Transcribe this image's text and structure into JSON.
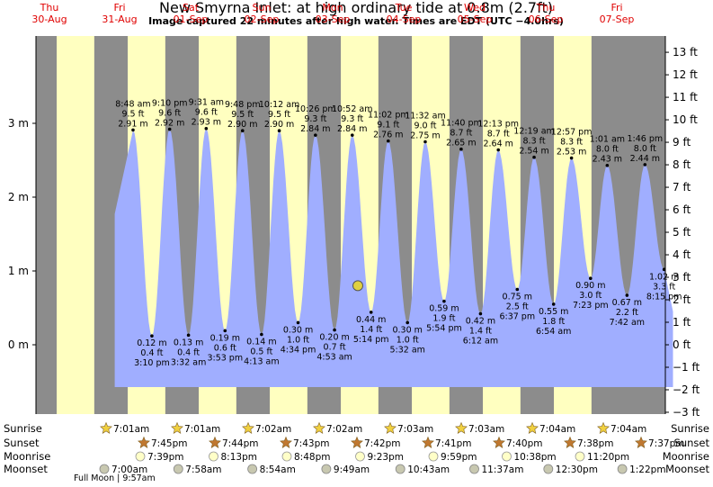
{
  "title": "New Smyrna Inlet: at high  ordinary tide at 0.8m (2.7ft)",
  "subtitle": "Image captured 22 minutes after high water. Times are EDT (UTC −4.0hrs)",
  "colors": {
    "night": "#8c8c8c",
    "day": "#ffffc0",
    "tide": "#a0aeff",
    "day_text": "#e00000",
    "marker": "#e0d040"
  },
  "chart_data": {
    "type": "area",
    "title": "New Smyrna Inlet: at high  ordinary tide at 0.8m (2.7ft)",
    "y_left_unit": "m",
    "y_right_unit": "ft",
    "ylim_m": [
      -0.9144,
      3.9624
    ],
    "yticks_m": [
      "0 m",
      "1 m",
      "2 m",
      "3 m"
    ],
    "yticks_ft": [
      "13 ft",
      "12 ft",
      "11 ft",
      "10 ft",
      "9 ft",
      "8 ft",
      "7 ft",
      "6 ft",
      "5 ft",
      "4 ft",
      "3 ft",
      "2 ft",
      "1 ft",
      "0 ft",
      "−1 ft",
      "−2 ft",
      "−3 ft"
    ],
    "days": [
      {
        "dow": "Thu",
        "date": "30-Aug"
      },
      {
        "dow": "Fri",
        "date": "31-Aug"
      },
      {
        "dow": "Sat",
        "date": "01-Sep"
      },
      {
        "dow": "Sun",
        "date": "02-Sep"
      },
      {
        "dow": "Mon",
        "date": "03-Sep"
      },
      {
        "dow": "Tue",
        "date": "04-Sep"
      },
      {
        "dow": "Wed",
        "date": "05-Sep"
      },
      {
        "dow": "Thu",
        "date": "06-Sep"
      },
      {
        "dow": "Fri",
        "date": "07-Sep"
      }
    ],
    "high_tides": [
      {
        "time": "8:48 am",
        "ft": "9.5 ft",
        "m": "2.91 m"
      },
      {
        "time": "9:10 pm",
        "ft": "9.6 ft",
        "m": "2.92 m"
      },
      {
        "time": "9:31 am",
        "ft": "9.6 ft",
        "m": "2.93 m"
      },
      {
        "time": "9:48 pm",
        "ft": "9.5 ft",
        "m": "2.90 m"
      },
      {
        "time": "10:12 am",
        "ft": "9.5 ft",
        "m": "2.90 m"
      },
      {
        "time": "10:26 pm",
        "ft": "9.3 ft",
        "m": "2.84 m"
      },
      {
        "time": "10:52 am",
        "ft": "9.3 ft",
        "m": "2.84 m"
      },
      {
        "time": "11:02 pm",
        "ft": "9.1 ft",
        "m": "2.76 m"
      },
      {
        "time": "11:32 am",
        "ft": "9.0 ft",
        "m": "2.75 m"
      },
      {
        "time": "11:40 pm",
        "ft": "8.7 ft",
        "m": "2.65 m"
      },
      {
        "time": "12:13 pm",
        "ft": "8.7 ft",
        "m": "2.64 m"
      },
      {
        "time": "12:19 am",
        "ft": "8.3 ft",
        "m": "2.54 m"
      },
      {
        "time": "12:57 pm",
        "ft": "8.3 ft",
        "m": "2.53 m"
      },
      {
        "time": "1:01 am",
        "ft": "8.0 ft",
        "m": "2.43 m"
      },
      {
        "time": "1:46 pm",
        "ft": "8.0 ft",
        "m": "2.44 m"
      }
    ],
    "low_tides": [
      {
        "m": "0.12 m",
        "ft": "0.4 ft",
        "time": "3:10 pm"
      },
      {
        "m": "0.13 m",
        "ft": "0.4 ft",
        "time": "3:32 am"
      },
      {
        "m": "0.19 m",
        "ft": "0.6 ft",
        "time": "3:53 pm"
      },
      {
        "m": "0.14 m",
        "ft": "0.5 ft",
        "time": "4:13 am"
      },
      {
        "m": "0.30 m",
        "ft": "1.0 ft",
        "time": "4:34 pm"
      },
      {
        "m": "0.20 m",
        "ft": "0.7 ft",
        "time": "4:53 am"
      },
      {
        "m": "0.44 m",
        "ft": "1.4 ft",
        "time": "5:14 pm"
      },
      {
        "m": "0.30 m",
        "ft": "1.0 ft",
        "time": "5:32 am"
      },
      {
        "m": "0.59 m",
        "ft": "1.9 ft",
        "time": "5:54 pm"
      },
      {
        "m": "0.42 m",
        "ft": "1.4 ft",
        "time": "6:12 am"
      },
      {
        "m": "0.75 m",
        "ft": "2.5 ft",
        "time": "6:37 pm"
      },
      {
        "m": "0.55 m",
        "ft": "1.8 ft",
        "time": "6:54 am"
      },
      {
        "m": "0.90 m",
        "ft": "3.0 ft",
        "time": "7:23 pm"
      },
      {
        "m": "0.67 m",
        "ft": "2.2 ft",
        "time": "7:42 am"
      },
      {
        "m": "1.02 m",
        "ft": "3.3 ft",
        "time": "8:15 pm"
      }
    ],
    "current_level_m": 0.8
  },
  "rows": {
    "sunrise": {
      "label": "Sunrise",
      "times": [
        "7:01am",
        "7:01am",
        "7:02am",
        "7:02am",
        "7:03am",
        "7:03am",
        "7:04am",
        "7:04am"
      ]
    },
    "sunset": {
      "label": "Sunset",
      "times": [
        "7:45pm",
        "7:44pm",
        "7:43pm",
        "7:42pm",
        "7:41pm",
        "7:40pm",
        "7:38pm",
        "7:37pm"
      ]
    },
    "moonrise": {
      "label": "Moonrise",
      "times": [
        "7:39pm",
        "8:13pm",
        "8:48pm",
        "9:23pm",
        "9:59pm",
        "10:38pm",
        "11:20pm"
      ]
    },
    "moonset": {
      "label": "Moonset",
      "times": [
        "7:00am",
        "7:58am",
        "8:54am",
        "9:49am",
        "10:43am",
        "11:37am",
        "12:30pm",
        "1:22pm"
      ]
    },
    "note": "Full Moon | 9:57am"
  }
}
